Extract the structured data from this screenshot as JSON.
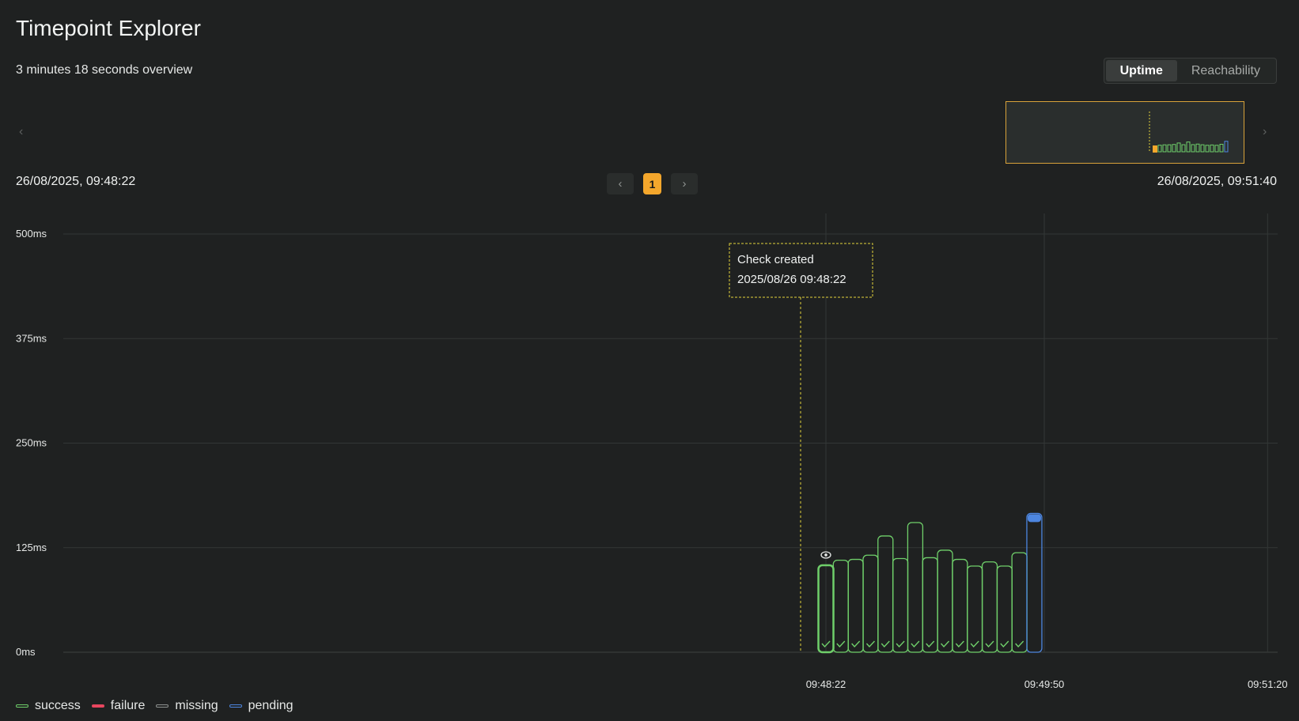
{
  "header": {
    "title": "Timepoint Explorer",
    "subtitle": "3 minutes 18 seconds overview"
  },
  "toggle": {
    "options": [
      "Uptime",
      "Reachability"
    ],
    "active": "Uptime"
  },
  "range": {
    "start": "26/08/2025, 09:48:22",
    "end": "26/08/2025, 09:51:40"
  },
  "pager": {
    "current": "1",
    "prev_icon": "chevron-left-icon",
    "next_icon": "chevron-right-icon"
  },
  "annotation": {
    "label": "Check created",
    "time": "2025/08/26 09:48:22"
  },
  "colors": {
    "success": "#6fcf6a",
    "failure": "#e8465f",
    "missing": "#8e9290",
    "pending": "#4d86e0",
    "accent": "#f4a72c",
    "annotation": "#e3d23a"
  },
  "chart_data": {
    "type": "bar",
    "yticks": [
      "500ms",
      "375ms",
      "250ms",
      "125ms",
      "0ms"
    ],
    "ylim": [
      0,
      500
    ],
    "xticks": [
      "09:48:22",
      "09:49:50",
      "09:51:20"
    ],
    "xrange_seconds": [
      0,
      198
    ],
    "xtick_seconds": [
      0,
      88,
      178
    ],
    "annotation_seconds": -1,
    "series": [
      {
        "status": "success",
        "values": [
          104,
          110,
          111,
          116,
          139,
          112,
          155,
          113,
          122,
          111,
          103,
          108,
          103,
          119
        ]
      },
      {
        "status": "pending",
        "values": [
          166
        ]
      }
    ],
    "bar_seconds": [
      0,
      6,
      12,
      18,
      24,
      30,
      36,
      42,
      48,
      54,
      60,
      66,
      72,
      78,
      84
    ],
    "selected_index": 0,
    "grid": true
  },
  "legend": {
    "items": [
      {
        "key": "success",
        "label": "success"
      },
      {
        "key": "failure",
        "label": "failure"
      },
      {
        "key": "missing",
        "label": "missing"
      },
      {
        "key": "pending",
        "label": "pending"
      }
    ]
  }
}
